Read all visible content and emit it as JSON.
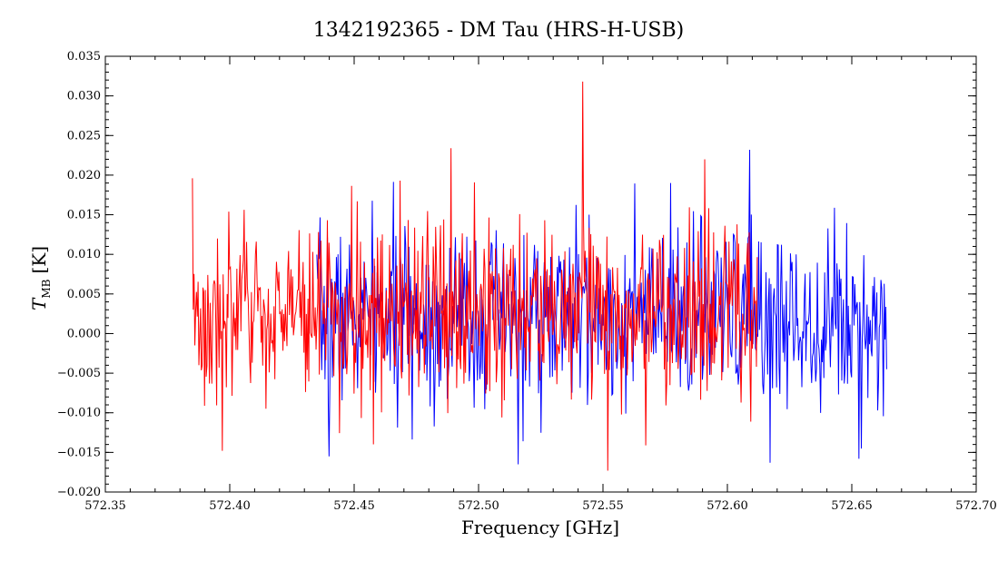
{
  "chart_data": {
    "type": "line",
    "title": "1342192365 - DM Tau (HRS-H-USB)",
    "xlabel": "Frequency [GHz]",
    "ylabel_main": "T",
    "ylabel_sub": "MB",
    "ylabel_unit": "[K]",
    "xlim": [
      572.35,
      572.7
    ],
    "ylim": [
      -0.02,
      0.035
    ],
    "x_ticks": [
      572.35,
      572.4,
      572.45,
      572.5,
      572.55,
      572.6,
      572.65,
      572.7
    ],
    "x_tick_labels": [
      "572.35",
      "572.40",
      "572.45",
      "572.50",
      "572.55",
      "572.60",
      "572.65",
      "572.70"
    ],
    "y_ticks": [
      -0.02,
      -0.015,
      -0.01,
      -0.005,
      0.0,
      0.005,
      0.01,
      0.015,
      0.02,
      0.025,
      0.03,
      0.035
    ],
    "y_tick_labels": [
      "−0.020",
      "−0.015",
      "−0.010",
      "−0.005",
      "0.000",
      "0.005",
      "0.010",
      "0.015",
      "0.020",
      "0.025",
      "0.030",
      "0.035"
    ],
    "grid": false,
    "series": [
      {
        "color": "#0000ff",
        "x_range": [
          572.435,
          572.664
        ],
        "mean": 0.002,
        "noise_sd": 0.0055,
        "seed": 7,
        "points": 700,
        "notable": [
          {
            "x": 572.44,
            "y": -0.0155
          },
          {
            "x": 572.516,
            "y": -0.0165
          },
          {
            "x": 572.609,
            "y": 0.0232
          },
          {
            "x": 572.617,
            "y": -0.0163
          },
          {
            "x": 572.653,
            "y": -0.0158
          },
          {
            "x": 572.664,
            "y": -0.0045
          }
        ]
      },
      {
        "color": "#ff0000",
        "x_range": [
          572.385,
          572.612
        ],
        "mean": 0.0025,
        "noise_sd": 0.0055,
        "seed": 3,
        "points": 700,
        "notable": [
          {
            "x": 572.385,
            "y": 0.0196
          },
          {
            "x": 572.397,
            "y": -0.0148
          },
          {
            "x": 572.489,
            "y": 0.0234
          },
          {
            "x": 572.542,
            "y": 0.0318
          },
          {
            "x": 572.552,
            "y": -0.0173
          }
        ]
      }
    ]
  }
}
